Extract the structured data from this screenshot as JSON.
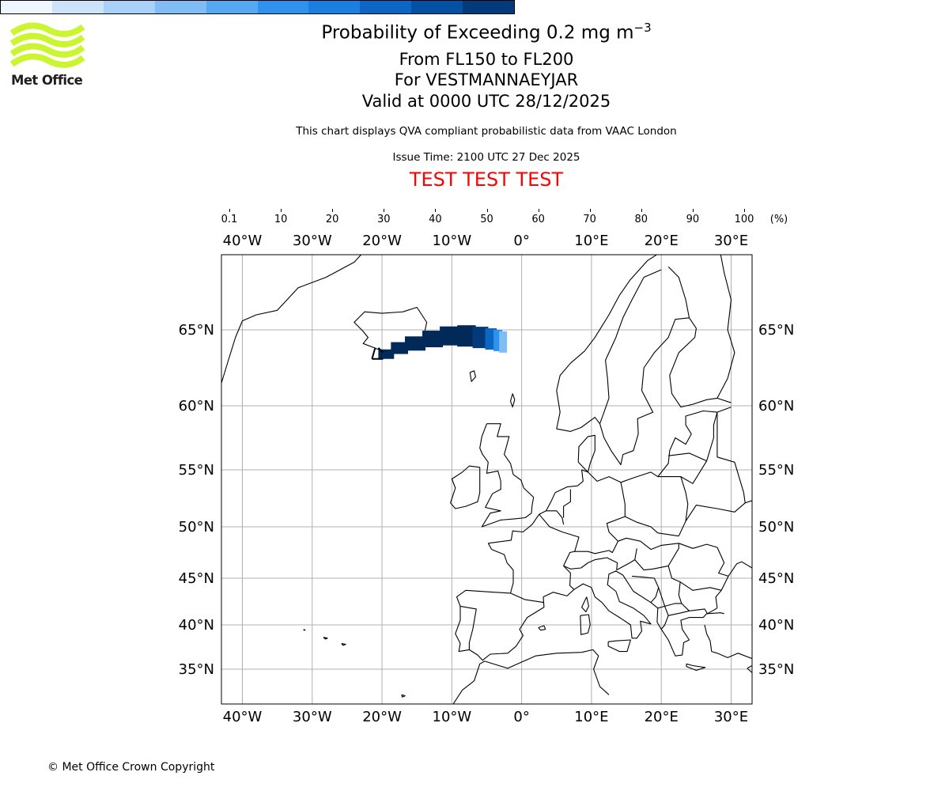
{
  "header": {
    "title_main": "Probability of Exceeding 0.2 mg m",
    "title_exp": "−3",
    "levels": "From FL150 to FL200",
    "volcano": "For VESTMANNAEYJAR",
    "valid": "Valid at 0000 UTC 28/12/2025",
    "note": "This chart displays QVA compliant probabilistic data from VAAC London",
    "issue": "Issue Time: 2100 UTC 27 Dec 2025",
    "test_banner": "TEST TEST TEST"
  },
  "logo": {
    "text": "Met Office",
    "color": "#ccf531"
  },
  "footer": {
    "copyright": "© Met Office Crown Copyright"
  },
  "colorbar": {
    "labels": [
      "0.1",
      "10",
      "20",
      "30",
      "40",
      "50",
      "60",
      "70",
      "80",
      "90",
      "100"
    ],
    "unit": "(%)",
    "colors": [
      "#eef6ff",
      "#cce3fb",
      "#a8d1f8",
      "#7fbdf4",
      "#56a8f1",
      "#2f93ee",
      "#1a7fe0",
      "#0c66c4",
      "#0450a3",
      "#023a7b",
      "#012a58"
    ]
  },
  "map": {
    "lon_labels": [
      "40°W",
      "30°W",
      "20°W",
      "10°W",
      "0°",
      "10°E",
      "20°E",
      "30°E"
    ],
    "lons": [
      -40,
      -30,
      -20,
      -10,
      0,
      10,
      20,
      30
    ],
    "lat_labels": [
      "65°N",
      "60°N",
      "55°N",
      "50°N",
      "45°N",
      "40°N",
      "35°N"
    ],
    "lats": [
      65,
      60,
      55,
      50,
      45,
      40,
      35
    ],
    "lon_range": [
      -43,
      33
    ],
    "grid_color": "#b0b0b0",
    "source": "Vestmannaeyjar",
    "plume": [
      {
        "lon": -20.3,
        "lat": 63.4,
        "prob": 90
      },
      {
        "lon": -18.5,
        "lat": 63.8,
        "prob": 90
      },
      {
        "lon": -16.5,
        "lat": 64.1,
        "prob": 90
      },
      {
        "lon": -14.0,
        "lat": 64.4,
        "prob": 90
      },
      {
        "lon": -11.5,
        "lat": 64.6,
        "prob": 90
      },
      {
        "lon": -9.0,
        "lat": 64.6,
        "prob": 90
      },
      {
        "lon": -6.8,
        "lat": 64.5,
        "prob": 80
      },
      {
        "lon": -5.0,
        "lat": 64.4,
        "prob": 60
      },
      {
        "lon": -3.8,
        "lat": 64.3,
        "prob": 40
      },
      {
        "lon": -3.0,
        "lat": 64.2,
        "prob": 20
      }
    ]
  }
}
